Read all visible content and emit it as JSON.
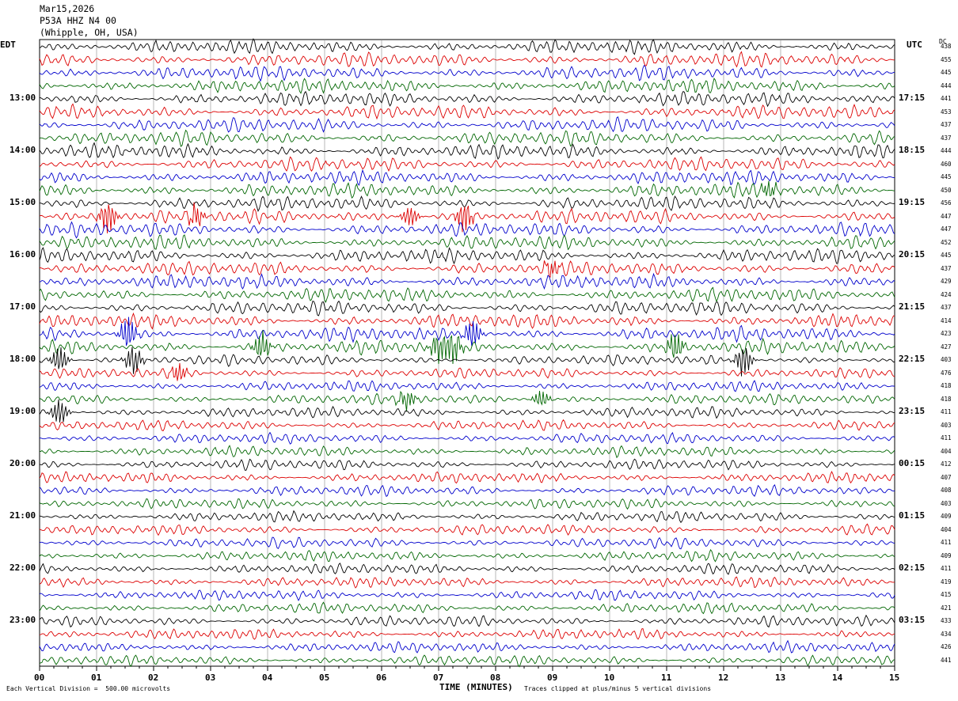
{
  "header": {
    "date": "Mar15,2026",
    "station": "P53A HHZ N4 00",
    "location": "(Whipple, OH, USA)"
  },
  "left_zone": "EDT",
  "right_zone": "UTC",
  "dc_header": "DC",
  "footer": {
    "scale": "Each Vertical Division =  500.00 microvolts",
    "clip": "Traces clipped at plus/minus 5 vertical divisions"
  },
  "chart_data": {
    "type": "line",
    "title": "",
    "xlabel": "TIME (MINUTES)",
    "ylabel": "",
    "x_ticks": [
      "00",
      "01",
      "02",
      "03",
      "04",
      "05",
      "06",
      "07",
      "08",
      "09",
      "10",
      "11",
      "12",
      "13",
      "14",
      "15"
    ],
    "xlim": [
      0,
      15
    ],
    "trace_colors": [
      "#000000",
      "#dd0000",
      "#0000cc",
      "#006600"
    ],
    "left_hour_labels": [
      "13:00",
      "14:00",
      "15:00",
      "16:00",
      "17:00",
      "18:00",
      "19:00",
      "20:00",
      "21:00",
      "22:00",
      "23:00"
    ],
    "right_hour_labels": [
      "17:15",
      "18:15",
      "19:15",
      "20:15",
      "21:15",
      "22:15",
      "23:15",
      "00:15",
      "01:15",
      "02:15",
      "03:15"
    ],
    "dc_offsets": [
      438,
      455,
      445,
      444,
      441,
      453,
      437,
      437,
      444,
      460,
      445,
      450,
      456,
      447,
      447,
      452,
      445,
      437,
      429,
      424,
      437,
      414,
      423,
      427,
      403,
      476,
      418,
      418,
      411,
      403,
      411,
      404,
      412,
      407,
      408,
      403,
      409,
      404,
      411,
      409,
      411,
      419,
      415,
      421,
      433,
      434,
      426,
      441
    ],
    "events": [
      {
        "trace": 13,
        "minute": 1.2,
        "amp": 2.6
      },
      {
        "trace": 13,
        "minute": 2.75,
        "amp": 1.6
      },
      {
        "trace": 13,
        "minute": 6.5,
        "amp": 1.6
      },
      {
        "trace": 13,
        "minute": 7.45,
        "amp": 2.4
      },
      {
        "trace": 11,
        "minute": 12.8,
        "amp": 1.2
      },
      {
        "trace": 17,
        "minute": 9.0,
        "amp": 1.3
      },
      {
        "trace": 22,
        "minute": 1.55,
        "amp": 2.6
      },
      {
        "trace": 22,
        "minute": 7.6,
        "amp": 2.2
      },
      {
        "trace": 23,
        "minute": 3.9,
        "amp": 2.2
      },
      {
        "trace": 23,
        "minute": 7.0,
        "amp": 2.2
      },
      {
        "trace": 23,
        "minute": 7.25,
        "amp": 2.4
      },
      {
        "trace": 23,
        "minute": 11.15,
        "amp": 2.2
      },
      {
        "trace": 24,
        "minute": 0.35,
        "amp": 2.0
      },
      {
        "trace": 24,
        "minute": 1.65,
        "amp": 2.2
      },
      {
        "trace": 24,
        "minute": 12.35,
        "amp": 2.4
      },
      {
        "trace": 25,
        "minute": 2.45,
        "amp": 1.4
      },
      {
        "trace": 27,
        "minute": 6.45,
        "amp": 1.5
      },
      {
        "trace": 27,
        "minute": 8.8,
        "amp": 1.3
      },
      {
        "trace": 28,
        "minute": 0.35,
        "amp": 2.0
      }
    ]
  }
}
